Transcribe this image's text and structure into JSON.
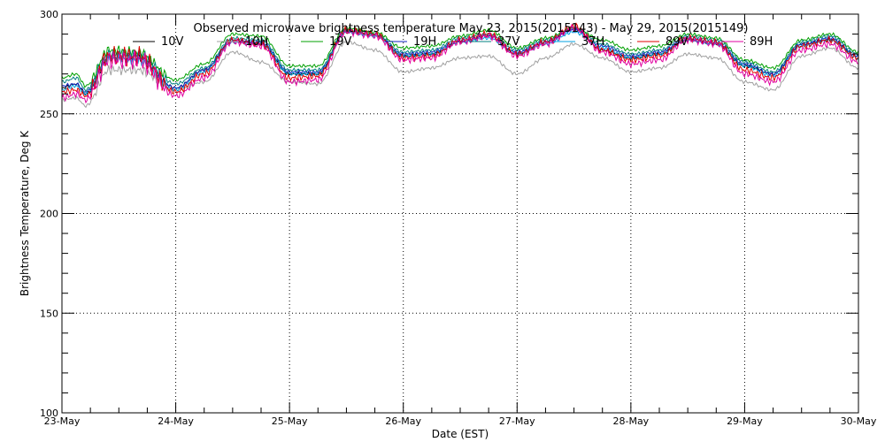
{
  "chart_data": {
    "type": "line",
    "title": "Observed microwave brightness temperature May 23, 2015(2015143) - May 29, 2015(2015149)",
    "xlabel": "Date (EST)",
    "ylabel": "Brightness Temperature, Deg K",
    "xlim": [
      "2015-05-23",
      "2015-05-30"
    ],
    "ylim": [
      100,
      300
    ],
    "x_ticks": [
      "23-May",
      "24-May",
      "25-May",
      "26-May",
      "27-May",
      "28-May",
      "29-May",
      "30-May"
    ],
    "y_ticks": [
      100,
      150,
      200,
      250,
      300
    ],
    "grid": true,
    "legend_position": "top",
    "anchor_x": [
      "2015-05-23 00:00",
      "2015-05-23 03:00",
      "2015-05-23 05:00",
      "2015-05-23 10:00",
      "2015-05-23 16:00",
      "2015-05-24 00:00",
      "2015-05-24 06:00",
      "2015-05-24 12:00",
      "2015-05-24 18:00",
      "2015-05-25 00:00",
      "2015-05-25 06:00",
      "2015-05-25 12:00",
      "2015-05-25 18:00",
      "2015-05-26 00:00",
      "2015-05-26 06:00",
      "2015-05-26 12:00",
      "2015-05-26 18:00",
      "2015-05-27 00:00",
      "2015-05-27 06:00",
      "2015-05-27 12:00",
      "2015-05-27 18:00",
      "2015-05-28 00:00",
      "2015-05-28 06:00",
      "2015-05-28 12:00",
      "2015-05-28 18:00",
      "2015-05-29 00:00",
      "2015-05-29 06:00",
      "2015-05-29 12:00",
      "2015-05-29 18:00",
      "2015-05-30 00:00"
    ],
    "series": [
      {
        "name": "10V",
        "color": "#000000",
        "noise": 1.5,
        "values": [
          263,
          265,
          260,
          278,
          278,
          263,
          272,
          287,
          285,
          270,
          270,
          291,
          290,
          279,
          280,
          286,
          289,
          280,
          286,
          293,
          282,
          278,
          280,
          287,
          285,
          274,
          270,
          285,
          287,
          279
        ]
      },
      {
        "name": "10H",
        "color": "#a0a0a0",
        "noise": 1.5,
        "values": [
          257,
          258,
          254,
          272,
          272,
          262,
          266,
          281,
          276,
          266,
          265,
          286,
          282,
          271,
          273,
          278,
          279,
          270,
          278,
          285,
          278,
          271,
          273,
          280,
          278,
          266,
          262,
          279,
          283,
          273
        ]
      },
      {
        "name": "19V",
        "color": "#00a000",
        "noise": 1.5,
        "values": [
          268,
          270,
          264,
          282,
          281,
          267,
          275,
          290,
          289,
          274,
          274,
          293,
          291,
          283,
          284,
          289,
          292,
          283,
          288,
          293,
          287,
          282,
          284,
          290,
          288,
          277,
          273,
          287,
          290,
          281
        ]
      },
      {
        "name": "19H",
        "color": "#1020c0",
        "noise": 1.5,
        "values": [
          264,
          265,
          261,
          279,
          279,
          263,
          272,
          287,
          286,
          271,
          271,
          292,
          290,
          280,
          281,
          287,
          289,
          281,
          286,
          292,
          284,
          279,
          281,
          288,
          286,
          275,
          270,
          285,
          288,
          279
        ]
      },
      {
        "name": "37V",
        "color": "#008080",
        "noise": 1.5,
        "values": [
          266,
          268,
          262,
          280,
          280,
          265,
          273,
          288,
          287,
          272,
          272,
          292,
          290,
          281,
          282,
          288,
          290,
          282,
          287,
          293,
          285,
          280,
          282,
          289,
          287,
          276,
          271,
          286,
          289,
          280
        ]
      },
      {
        "name": "37H",
        "color": "#00a0e0",
        "noise": 1.5,
        "values": [
          262,
          264,
          260,
          278,
          277,
          262,
          271,
          286,
          285,
          270,
          270,
          291,
          289,
          279,
          280,
          286,
          288,
          280,
          285,
          291,
          283,
          278,
          280,
          287,
          285,
          274,
          269,
          284,
          287,
          278
        ]
      },
      {
        "name": "89V",
        "color": "#e00000",
        "noise": 3.0,
        "values": [
          261,
          262,
          259,
          279,
          279,
          261,
          270,
          287,
          285,
          268,
          269,
          292,
          290,
          278,
          279,
          287,
          290,
          280,
          286,
          294,
          282,
          277,
          279,
          288,
          286,
          272,
          268,
          284,
          287,
          278
        ]
      },
      {
        "name": "89H",
        "color": "#e000a0",
        "noise": 3.0,
        "values": [
          258,
          260,
          257,
          277,
          277,
          259,
          268,
          286,
          284,
          266,
          267,
          291,
          289,
          277,
          278,
          286,
          289,
          279,
          285,
          293,
          281,
          275,
          277,
          287,
          285,
          270,
          266,
          282,
          285,
          276
        ]
      }
    ]
  }
}
